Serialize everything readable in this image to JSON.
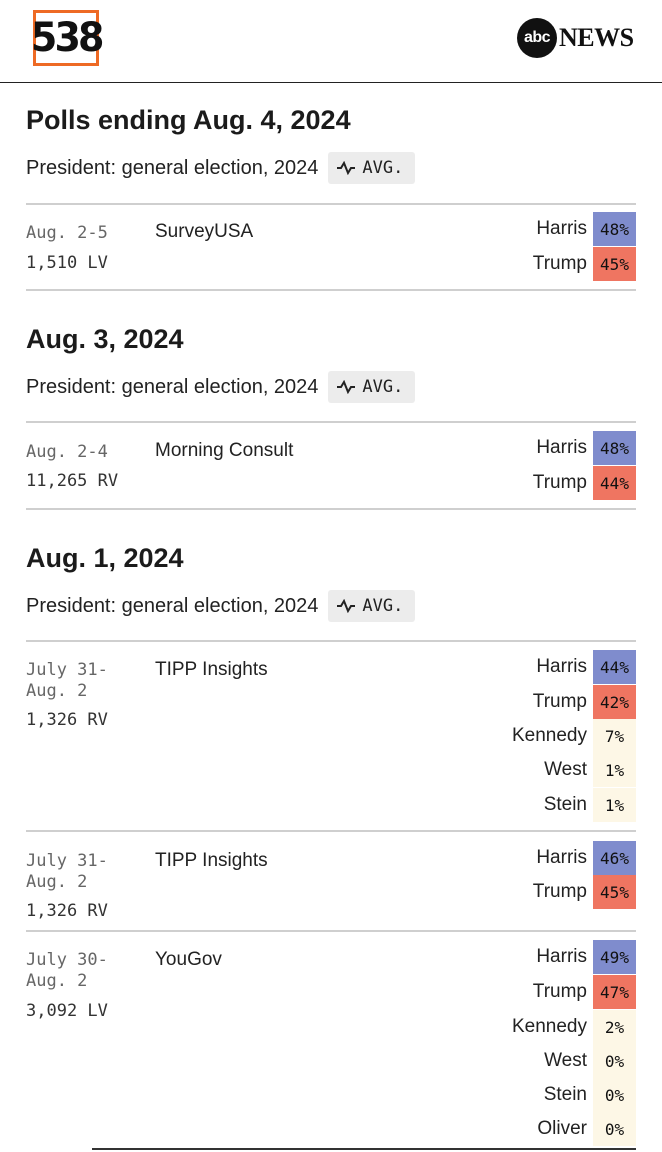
{
  "header": {
    "logo_text": "538",
    "abc_text": "abc",
    "news_text": "NEWS"
  },
  "colors": {
    "harris": "#7f8ccd",
    "trump": "#ef7561",
    "other": "#fdf7e6",
    "logo_border": "#ee6a24"
  },
  "sections": [
    {
      "title": "Polls ending Aug. 4, 2024",
      "race": "President: general election, 2024",
      "avg_label": "AVG.",
      "polls": [
        {
          "dates": "Aug. 2-5",
          "sample": "1,510 LV",
          "pollster": "SurveyUSA",
          "results": [
            {
              "name": "Harris",
              "pct": "48%",
              "party": "harris"
            },
            {
              "name": "Trump",
              "pct": "45%",
              "party": "trump"
            }
          ]
        }
      ]
    },
    {
      "title": "Aug. 3, 2024",
      "race": "President: general election, 2024",
      "avg_label": "AVG.",
      "polls": [
        {
          "dates": "Aug. 2-4",
          "sample": "11,265 RV",
          "pollster": "Morning Consult",
          "results": [
            {
              "name": "Harris",
              "pct": "48%",
              "party": "harris"
            },
            {
              "name": "Trump",
              "pct": "44%",
              "party": "trump"
            }
          ]
        }
      ]
    },
    {
      "title": "Aug. 1, 2024",
      "race": "President: general election, 2024",
      "avg_label": "AVG.",
      "polls": [
        {
          "dates": "July 31-\nAug. 2",
          "sample": "1,326 RV",
          "pollster": "TIPP Insights",
          "results": [
            {
              "name": "Harris",
              "pct": "44%",
              "party": "harris"
            },
            {
              "name": "Trump",
              "pct": "42%",
              "party": "trump"
            },
            {
              "name": "Kennedy",
              "pct": "7%",
              "party": "other"
            },
            {
              "name": "West",
              "pct": "1%",
              "party": "other"
            },
            {
              "name": "Stein",
              "pct": "1%",
              "party": "other"
            }
          ]
        },
        {
          "dates": "July 31-\nAug. 2",
          "sample": "1,326 RV",
          "pollster": "TIPP Insights",
          "results": [
            {
              "name": "Harris",
              "pct": "46%",
              "party": "harris"
            },
            {
              "name": "Trump",
              "pct": "45%",
              "party": "trump"
            }
          ]
        },
        {
          "dates": "July 30-\nAug. 2",
          "sample": "3,092 LV",
          "pollster": "YouGov",
          "results": [
            {
              "name": "Harris",
              "pct": "49%",
              "party": "harris"
            },
            {
              "name": "Trump",
              "pct": "47%",
              "party": "trump"
            },
            {
              "name": "Kennedy",
              "pct": "2%",
              "party": "other"
            },
            {
              "name": "West",
              "pct": "0%",
              "party": "other"
            },
            {
              "name": "Stein",
              "pct": "0%",
              "party": "other"
            },
            {
              "name": "Oliver",
              "pct": "0%",
              "party": "other"
            }
          ]
        }
      ]
    }
  ]
}
